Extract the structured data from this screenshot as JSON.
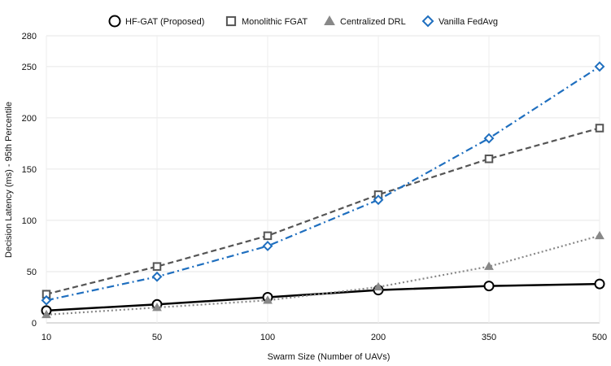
{
  "chart_data": {
    "type": "line",
    "title": "",
    "xlabel": "Swarm Size (Number of UAVs)",
    "ylabel": "Decision Latency (ms) - 95th Percentile",
    "categories": [
      "10",
      "50",
      "100",
      "200",
      "350",
      "500"
    ],
    "ylim": [
      0,
      280
    ],
    "yticks": [
      0,
      50,
      100,
      150,
      200,
      250,
      280
    ],
    "grid": true,
    "legend_position": "top",
    "series": [
      {
        "name": "HF-GAT (Proposed)",
        "values": [
          12,
          18,
          25,
          32,
          36,
          38
        ],
        "color": "#000000",
        "line_style": "solid",
        "marker": "circle"
      },
      {
        "name": "Monolithic FGAT",
        "values": [
          28,
          55,
          85,
          125,
          160,
          190
        ],
        "color": "#555555",
        "line_style": "dashed",
        "marker": "square"
      },
      {
        "name": "Centralized DRL",
        "values": [
          8,
          15,
          22,
          35,
          55,
          85
        ],
        "color": "#888888",
        "line_style": "dotted",
        "marker": "triangle"
      },
      {
        "name": "Vanilla FedAvg",
        "values": [
          22,
          45,
          75,
          120,
          180,
          250
        ],
        "color": "#1f6fbf",
        "line_style": "dashdot",
        "marker": "diamond"
      }
    ]
  }
}
